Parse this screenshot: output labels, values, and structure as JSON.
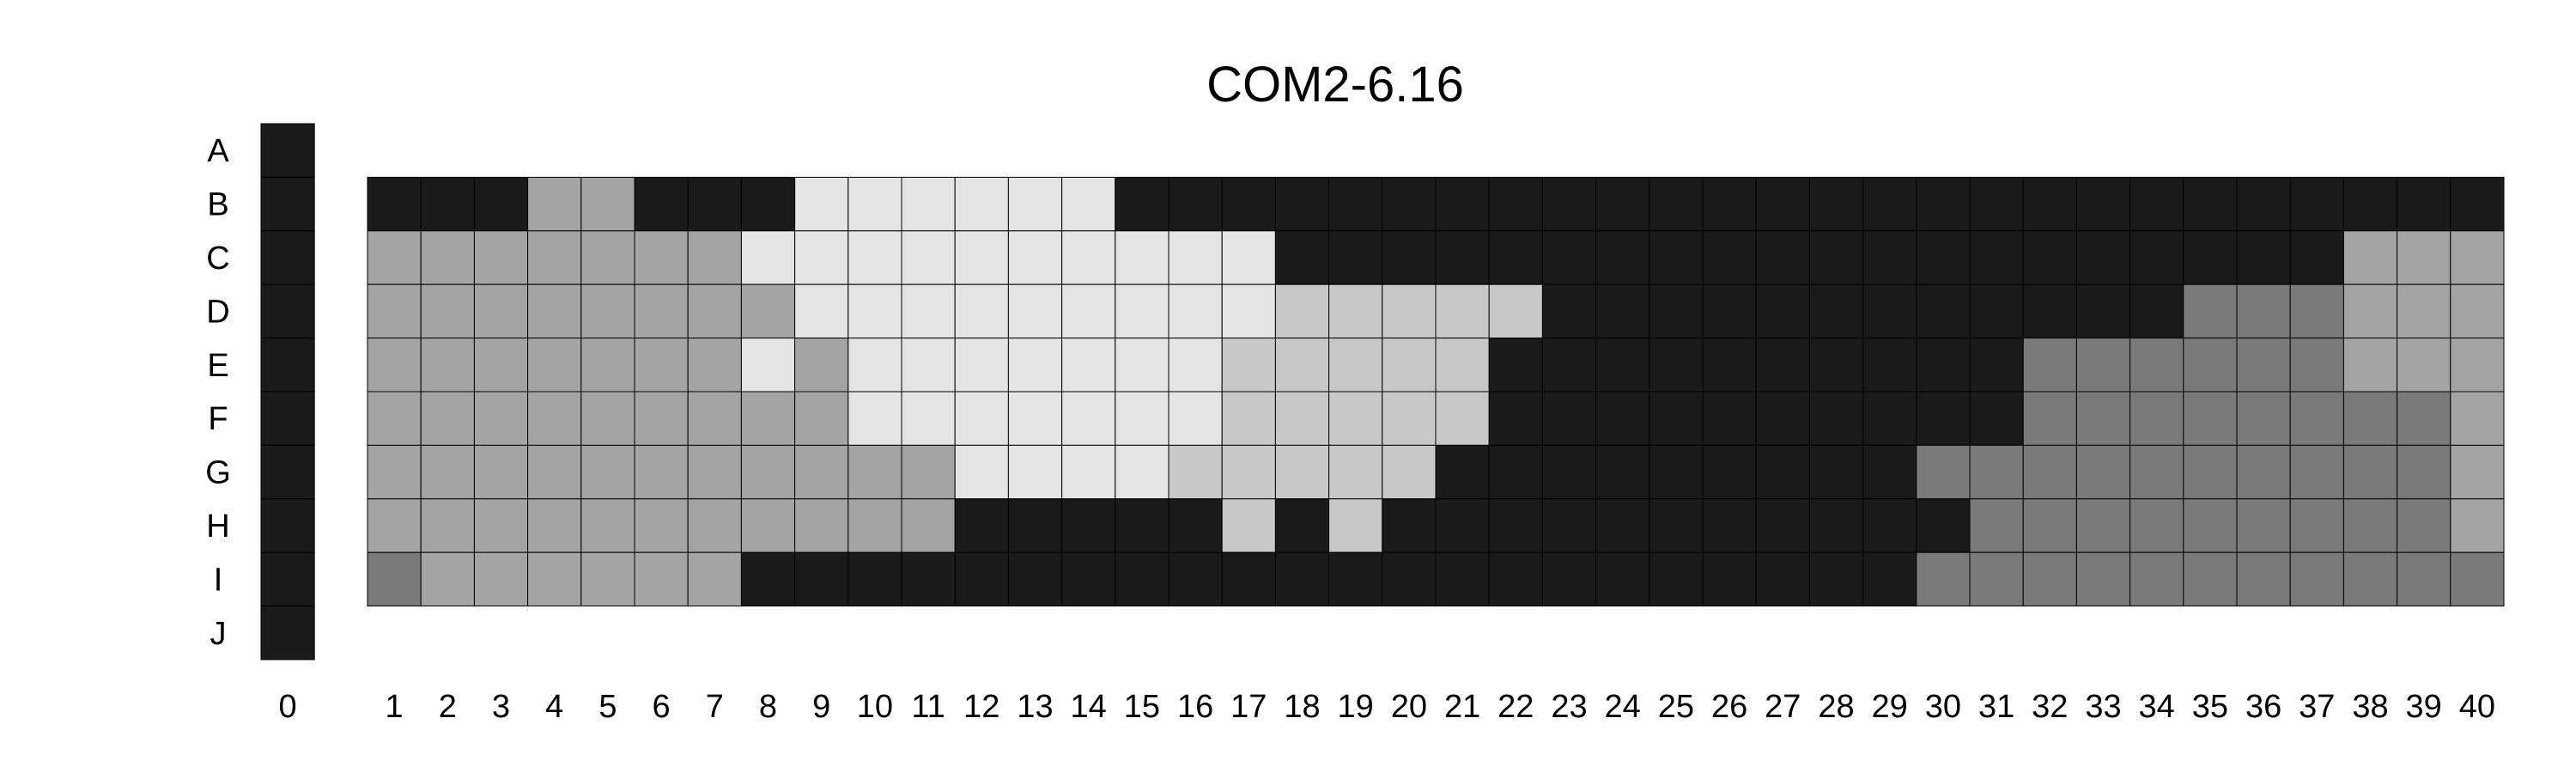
{
  "chart_data": {
    "type": "heatmap",
    "title": "COM2-6.16",
    "colors": {
      "1": "#1a1a1a",
      "2": "#7a7a7a",
      "3": "#a4a4a4",
      "4": "#c8c8c8",
      "5": "#e4e4e4"
    },
    "rows": [
      "A",
      "B",
      "C",
      "D",
      "E",
      "F",
      "G",
      "H",
      "I",
      "J"
    ],
    "control_column": {
      "label": "0",
      "values": [
        1,
        1,
        1,
        1,
        1,
        1,
        1,
        1,
        1,
        1
      ]
    },
    "columns": [
      "1",
      "2",
      "3",
      "4",
      "5",
      "6",
      "7",
      "8",
      "9",
      "10",
      "11",
      "12",
      "13",
      "14",
      "15",
      "16",
      "17",
      "18",
      "19",
      "20",
      "21",
      "22",
      "23",
      "24",
      "25",
      "26",
      "27",
      "28",
      "29",
      "30",
      "31",
      "32",
      "33",
      "34",
      "35",
      "36",
      "37",
      "38",
      "39",
      "40"
    ],
    "grid_rows": [
      "B",
      "C",
      "D",
      "E",
      "F",
      "G",
      "H",
      "I"
    ],
    "grid": [
      [
        1,
        1,
        1,
        3,
        3,
        1,
        1,
        1,
        5,
        5,
        5,
        5,
        5,
        5,
        1,
        1,
        1,
        1,
        1,
        1,
        1,
        1,
        1,
        1,
        1,
        1,
        1,
        1,
        1,
        1,
        1,
        1,
        1,
        1,
        1,
        1,
        1,
        1,
        1,
        1
      ],
      [
        3,
        3,
        3,
        3,
        3,
        3,
        3,
        5,
        5,
        5,
        5,
        5,
        5,
        5,
        5,
        5,
        5,
        1,
        1,
        1,
        1,
        1,
        1,
        1,
        1,
        1,
        1,
        1,
        1,
        1,
        1,
        1,
        1,
        1,
        1,
        1,
        1,
        3,
        3,
        3
      ],
      [
        3,
        3,
        3,
        3,
        3,
        3,
        3,
        3,
        5,
        5,
        5,
        5,
        5,
        5,
        5,
        5,
        5,
        4,
        4,
        4,
        4,
        4,
        1,
        1,
        1,
        1,
        1,
        1,
        1,
        1,
        1,
        1,
        1,
        1,
        2,
        2,
        2,
        3,
        3,
        3
      ],
      [
        3,
        3,
        3,
        3,
        3,
        3,
        3,
        5,
        3,
        5,
        5,
        5,
        5,
        5,
        5,
        5,
        4,
        4,
        4,
        4,
        4,
        1,
        1,
        1,
        1,
        1,
        1,
        1,
        1,
        1,
        1,
        2,
        2,
        2,
        2,
        2,
        2,
        3,
        3,
        3
      ],
      [
        3,
        3,
        3,
        3,
        3,
        3,
        3,
        3,
        3,
        5,
        5,
        5,
        5,
        5,
        5,
        5,
        4,
        4,
        4,
        4,
        4,
        1,
        1,
        1,
        1,
        1,
        1,
        1,
        1,
        1,
        1,
        2,
        2,
        2,
        2,
        2,
        2,
        2,
        2,
        3
      ],
      [
        3,
        3,
        3,
        3,
        3,
        3,
        3,
        3,
        3,
        3,
        3,
        5,
        5,
        5,
        5,
        4,
        4,
        4,
        4,
        4,
        1,
        1,
        1,
        1,
        1,
        1,
        1,
        1,
        1,
        2,
        2,
        2,
        2,
        2,
        2,
        2,
        2,
        2,
        2,
        3
      ],
      [
        3,
        3,
        3,
        3,
        3,
        3,
        3,
        3,
        3,
        3,
        3,
        1,
        1,
        1,
        1,
        1,
        4,
        1,
        4,
        1,
        1,
        1,
        1,
        1,
        1,
        1,
        1,
        1,
        1,
        1,
        2,
        2,
        2,
        2,
        2,
        2,
        2,
        2,
        2,
        3
      ],
      [
        2,
        3,
        3,
        3,
        3,
        3,
        3,
        1,
        1,
        1,
        1,
        1,
        1,
        1,
        1,
        1,
        1,
        1,
        1,
        1,
        1,
        1,
        1,
        1,
        1,
        1,
        1,
        1,
        1,
        2,
        2,
        2,
        2,
        2,
        2,
        2,
        2,
        2,
        2,
        2
      ]
    ]
  }
}
